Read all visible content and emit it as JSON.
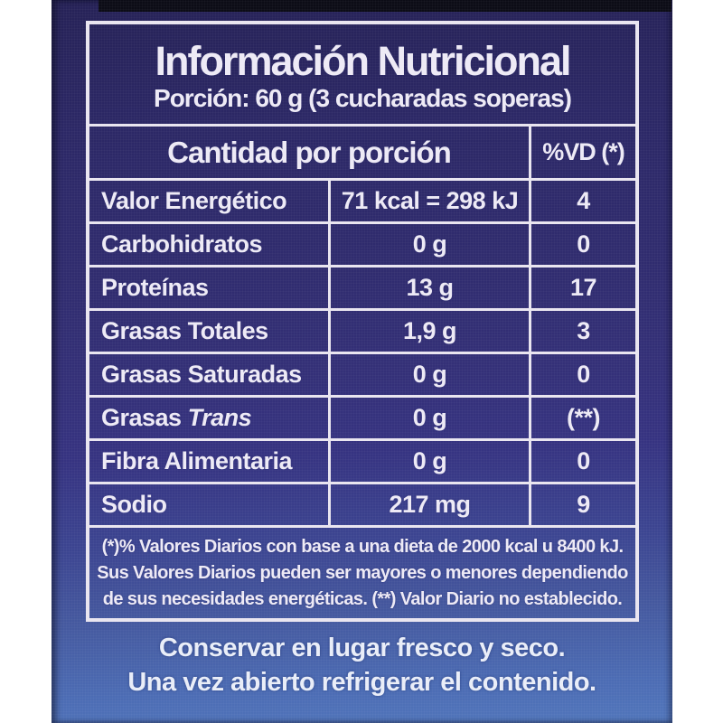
{
  "label": {
    "title": "Información Nutricional",
    "portion": "Porción: 60 g (3 cucharadas soperas)",
    "table": {
      "header": {
        "amount_col": "Cantidad por porción",
        "dv_col": "%VD (*)"
      },
      "rows": [
        {
          "name": "Valor Energético",
          "amount": "71 kcal = 298 kJ",
          "dv": "4"
        },
        {
          "name": "Carbohidratos",
          "amount": "0 g",
          "dv": "0"
        },
        {
          "name": "Proteínas",
          "amount": "13 g",
          "dv": "17"
        },
        {
          "name": "Grasas Totales",
          "amount": "1,9 g",
          "dv": "3"
        },
        {
          "name": "Grasas Saturadas",
          "amount": "0 g",
          "dv": "0"
        },
        {
          "name_prefix": "Grasas",
          "name_italic": "Trans",
          "amount": "0 g",
          "dv": "(**)"
        },
        {
          "name": "Fibra Alimentaria",
          "amount": "0 g",
          "dv": "0"
        },
        {
          "name": "Sodio",
          "amount": "217 mg",
          "dv": "9"
        }
      ],
      "footnote_lines": [
        "(*)% Valores Diarios con base a una dieta de 2000 kcal u 8400 kJ.",
        "Sus Valores Diarios pueden ser mayores o menores dependiendo",
        "de sus necesidades energéticas. (**) Valor Diario no establecido."
      ]
    },
    "storage_lines": [
      "Conservar en lugar fresco y seco.",
      "Una vez abierto refrigerar el contenido."
    ],
    "colors": {
      "photo_background": "#ffffff",
      "label_top": "#2c2866",
      "label_bottom": "#4c6cb4",
      "border": "#e9e5f0",
      "text": "#edeaf5",
      "top_strip": "#0c0c16"
    }
  }
}
